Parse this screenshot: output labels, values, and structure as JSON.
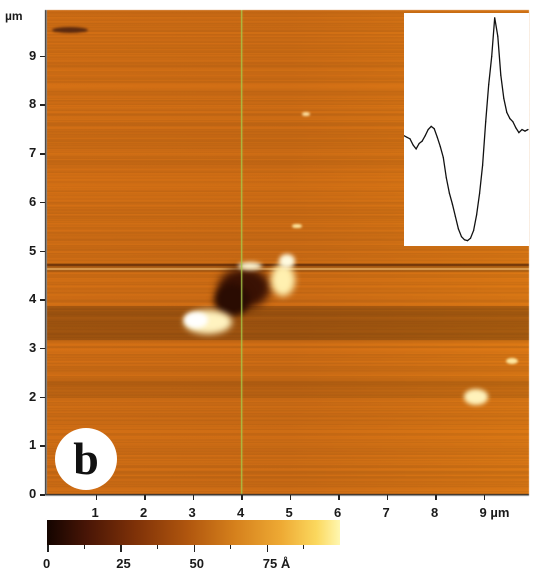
{
  "figure": {
    "panel_label": "b",
    "y_axis": {
      "unit": "µm",
      "ticks": [
        "0",
        "1",
        "2",
        "3",
        "4",
        "5",
        "6",
        "7",
        "8",
        "9"
      ]
    },
    "x_axis": {
      "unit": "µm",
      "ticks": [
        "1",
        "2",
        "3",
        "4",
        "5",
        "6",
        "7",
        "8",
        "9"
      ],
      "last_tick_label": "9 µm"
    },
    "colorbar": {
      "ticks": [
        "0",
        "25",
        "50",
        "75"
      ],
      "last_label": "75 Å"
    },
    "inset": {
      "type": "height-profile",
      "line_color": "#111111"
    },
    "colors": {
      "scan_base": "#c96a14",
      "scan_bright": "#fff6c2",
      "scan_dark": "#3a1204",
      "line_cursor": "#a7c94a"
    }
  },
  "chart_data": {
    "type": "line",
    "title": "",
    "xlabel": "",
    "ylabel": "",
    "x": [
      0,
      3,
      6,
      9,
      12,
      15,
      18,
      21,
      24,
      27,
      30,
      33,
      36,
      39,
      42,
      45,
      48,
      51,
      54,
      57,
      60,
      63,
      66,
      69,
      72,
      75,
      78,
      81,
      84,
      87,
      90,
      93,
      96,
      99,
      102,
      105,
      108,
      111,
      114,
      117,
      120,
      123
    ],
    "values": [
      158,
      160,
      162,
      170,
      175,
      168,
      165,
      158,
      150,
      146,
      149,
      160,
      172,
      186,
      212,
      232,
      246,
      262,
      278,
      288,
      292,
      293,
      290,
      280,
      260,
      232,
      196,
      140,
      92,
      56,
      6,
      30,
      80,
      110,
      128,
      136,
      140,
      148,
      154,
      150,
      152,
      150
    ],
    "ylim": [
      0,
      300
    ]
  }
}
